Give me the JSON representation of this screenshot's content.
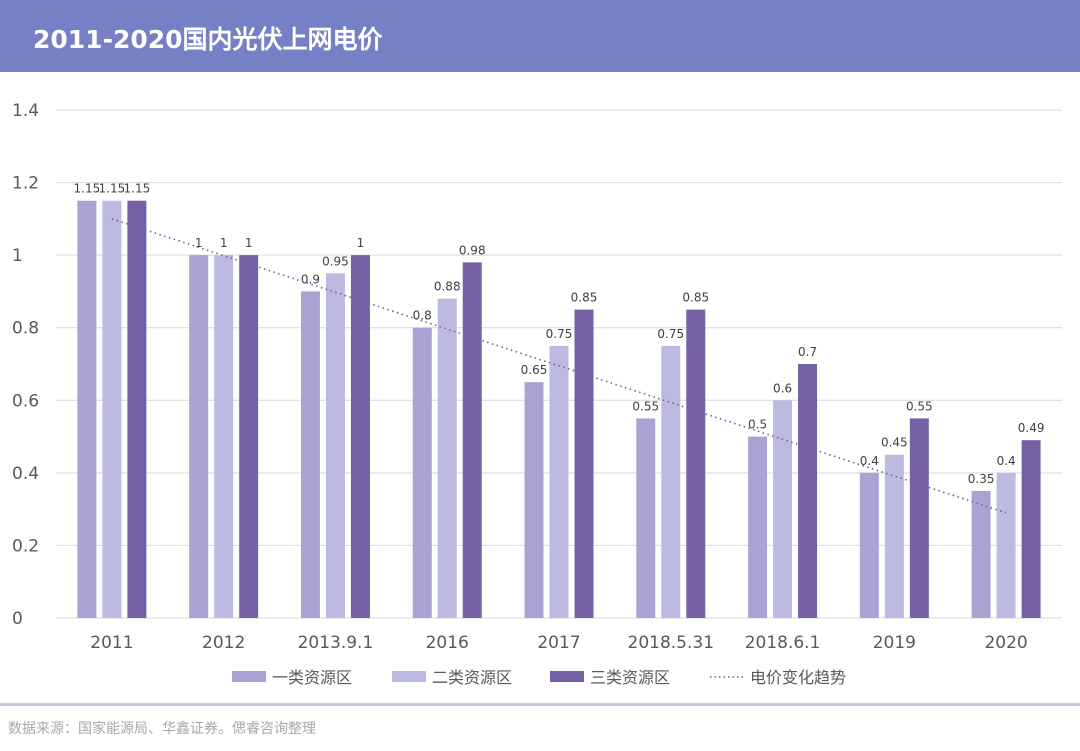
{
  "header": {
    "title": "2011-2020国内光伏上网电价"
  },
  "footer": {
    "source": "数据来源：国家能源局、华鑫证券。偲睿咨询整理"
  },
  "colors": {
    "header_bg": "#7680c4",
    "series": [
      "#a9a3d3",
      "#bcbbdf",
      "#7562a5"
    ],
    "trend": "#6c5fa8",
    "grid": "#d9d9d9",
    "axis_text": "#595959",
    "label_text": "#404040"
  },
  "chart_data": {
    "type": "bar",
    "categories": [
      "2011",
      "2012",
      "2013.9.1",
      "2016",
      "2017",
      "2018.5.31",
      "2018.6.1",
      "2019",
      "2020"
    ],
    "series": [
      {
        "name": "一类资源区",
        "values": [
          1.15,
          1,
          0.9,
          0.8,
          0.65,
          0.55,
          0.5,
          0.4,
          0.35
        ]
      },
      {
        "name": "二类资源区",
        "values": [
          1.15,
          1,
          0.95,
          0.88,
          0.75,
          0.75,
          0.6,
          0.45,
          0.4
        ]
      },
      {
        "name": "三类资源区",
        "values": [
          1.15,
          1,
          1,
          0.98,
          0.85,
          0.85,
          0.7,
          0.55,
          0.49
        ]
      }
    ],
    "trendline": {
      "name": "电价变化趋势",
      "type": "linear",
      "style": "dotted",
      "start": 1.1,
      "end": 0.29
    },
    "title": "",
    "xlabel": "",
    "ylabel": "",
    "ylim": [
      0,
      1.4
    ],
    "yticks": [
      "0",
      "0.2",
      "0.4",
      "0.6",
      "0.8",
      "1",
      "1.2",
      "1.4"
    ],
    "ytick_values": [
      0,
      0.2,
      0.4,
      0.6,
      0.8,
      1,
      1.2,
      1.4
    ],
    "grid": true,
    "legend": "bottom"
  }
}
